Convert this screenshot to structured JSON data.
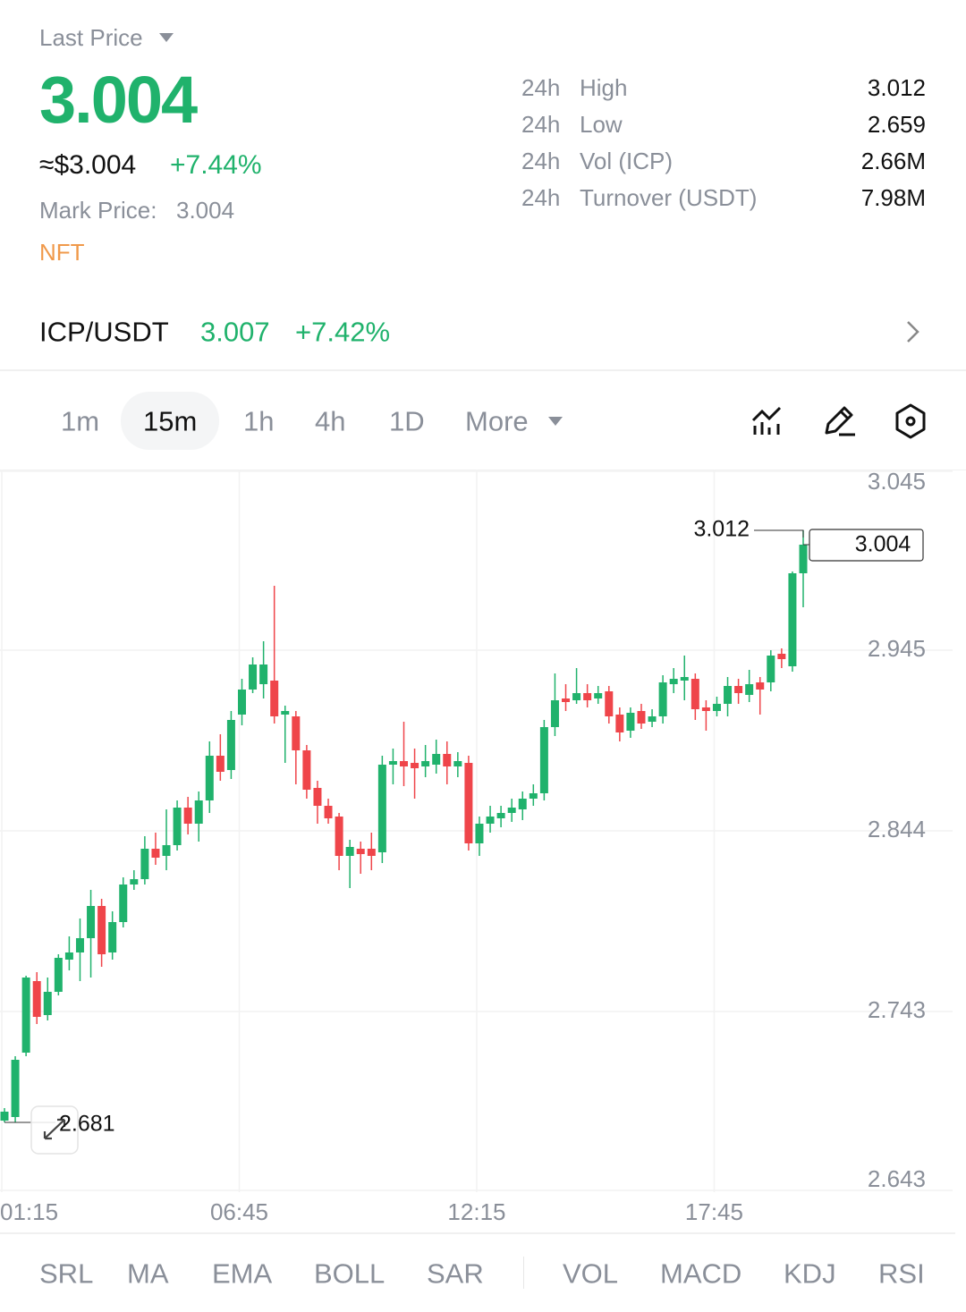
{
  "header": {
    "price_type": "Last Price",
    "last_price": "3.004",
    "usd_price": "≈$3.004",
    "change": "+7.44%",
    "mark_price_label": "Mark Price:",
    "mark_price": "3.004",
    "tag": "NFT"
  },
  "stats": [
    {
      "period": "24h",
      "label": "High",
      "value": "3.012"
    },
    {
      "period": "24h",
      "label": "Low",
      "value": "2.659"
    },
    {
      "period": "24h",
      "label": "Vol (ICP)",
      "value": "2.66M"
    },
    {
      "period": "24h",
      "label": "Turnover (USDT)",
      "value": "7.98M"
    }
  ],
  "pair": {
    "name": "ICP/USDT",
    "price": "3.007",
    "change": "+7.42%"
  },
  "intervals": [
    "1m",
    "15m",
    "1h",
    "4h",
    "1D",
    "More"
  ],
  "selected_interval": "15m",
  "indicators": [
    "SRL",
    "MA",
    "EMA",
    "BOLL",
    "SAR",
    "VOL",
    "MACD",
    "KDJ",
    "RSI"
  ],
  "chart_data": {
    "type": "candlestick",
    "categories": [
      "01:15",
      null,
      null,
      null,
      null,
      null,
      null,
      null,
      null,
      null,
      null,
      null,
      null,
      null,
      null,
      null,
      null,
      null,
      null,
      null,
      null,
      null,
      "06:45",
      null,
      null,
      null,
      null,
      null,
      null,
      null,
      null,
      null,
      null,
      null,
      null,
      null,
      null,
      null,
      null,
      null,
      null,
      null,
      null,
      null,
      "12:15",
      null,
      null,
      null,
      null,
      null,
      null,
      null,
      null,
      null,
      null,
      null,
      null,
      null,
      null,
      null,
      null,
      null,
      null,
      null,
      null,
      null,
      "17:45",
      null,
      null,
      null,
      null,
      null,
      null,
      null,
      null
    ],
    "open": [
      2.682,
      2.684,
      2.72,
      2.76,
      2.741,
      2.754,
      2.772,
      2.776,
      2.784,
      2.802,
      2.776,
      2.793,
      2.814,
      2.817,
      2.834,
      2.83,
      2.836,
      2.857,
      2.848,
      2.861,
      2.886,
      2.878,
      2.909,
      2.923,
      2.926,
      2.928,
      2.909,
      2.908,
      2.889,
      2.868,
      2.858,
      2.852,
      2.83,
      2.834,
      2.834,
      2.832,
      2.881,
      2.883,
      2.882,
      2.88,
      2.881,
      2.887,
      2.88,
      2.882,
      2.837,
      2.848,
      2.851,
      2.854,
      2.856,
      2.862,
      2.865,
      2.902,
      2.918,
      2.917,
      2.921,
      2.918,
      2.922,
      2.909,
      2.9,
      2.911,
      2.905,
      2.908,
      2.926,
      2.928,
      2.929,
      2.913,
      2.911,
      2.915,
      2.925,
      2.92,
      2.927,
      2.927,
      2.943,
      2.936,
      2.988
    ],
    "high": [
      2.689,
      2.718,
      2.763,
      2.765,
      2.762,
      2.775,
      2.785,
      2.795,
      2.811,
      2.806,
      2.799,
      2.818,
      2.822,
      2.841,
      2.843,
      2.856,
      2.861,
      2.863,
      2.866,
      2.894,
      2.898,
      2.911,
      2.929,
      2.941,
      2.95,
      2.981,
      2.914,
      2.911,
      2.892,
      2.872,
      2.862,
      2.854,
      2.839,
      2.838,
      2.843,
      2.886,
      2.89,
      2.905,
      2.89,
      2.892,
      2.895,
      2.894,
      2.888,
      2.886,
      2.852,
      2.858,
      2.858,
      2.862,
      2.866,
      2.87,
      2.906,
      2.932,
      2.926,
      2.935,
      2.926,
      2.925,
      2.925,
      2.913,
      2.913,
      2.915,
      2.912,
      2.931,
      2.935,
      2.942,
      2.932,
      2.917,
      2.919,
      2.93,
      2.929,
      2.934,
      2.93,
      2.945,
      2.946,
      2.989,
      3.012
    ],
    "low": [
      2.681,
      2.681,
      2.718,
      2.736,
      2.738,
      2.752,
      2.766,
      2.76,
      2.762,
      2.768,
      2.772,
      2.79,
      2.811,
      2.814,
      2.825,
      2.822,
      2.833,
      2.842,
      2.838,
      2.854,
      2.872,
      2.873,
      2.903,
      2.921,
      2.918,
      2.904,
      2.882,
      2.87,
      2.862,
      2.848,
      2.848,
      2.822,
      2.812,
      2.82,
      2.822,
      2.826,
      2.87,
      2.869,
      2.862,
      2.874,
      2.876,
      2.87,
      2.874,
      2.833,
      2.83,
      2.843,
      2.846,
      2.849,
      2.85,
      2.858,
      2.861,
      2.897,
      2.911,
      2.915,
      2.913,
      2.915,
      2.904,
      2.894,
      2.896,
      2.901,
      2.902,
      2.904,
      2.921,
      2.917,
      2.906,
      2.9,
      2.908,
      2.908,
      2.915,
      2.916,
      2.909,
      2.922,
      2.935,
      2.933,
      2.969
    ],
    "close": [
      2.687,
      2.716,
      2.762,
      2.74,
      2.754,
      2.773,
      2.776,
      2.784,
      2.802,
      2.775,
      2.793,
      2.814,
      2.817,
      2.834,
      2.829,
      2.836,
      2.857,
      2.848,
      2.861,
      2.886,
      2.877,
      2.906,
      2.923,
      2.937,
      2.937,
      2.908,
      2.911,
      2.889,
      2.867,
      2.858,
      2.851,
      2.83,
      2.835,
      2.831,
      2.83,
      2.881,
      2.883,
      2.88,
      2.879,
      2.883,
      2.887,
      2.88,
      2.883,
      2.837,
      2.848,
      2.852,
      2.854,
      2.857,
      2.862,
      2.865,
      2.902,
      2.917,
      2.916,
      2.921,
      2.917,
      2.921,
      2.908,
      2.899,
      2.91,
      2.904,
      2.908,
      2.927,
      2.929,
      2.93,
      2.912,
      2.911,
      2.915,
      2.925,
      2.921,
      2.926,
      2.923,
      2.942,
      2.94,
      2.988,
      3.004
    ],
    "up_color": "#20b26c",
    "down_color": "#ef454a",
    "ylim": [
      2.642,
      3.046
    ],
    "yticks": [
      3.045,
      2.945,
      2.844,
      2.743,
      2.643
    ],
    "grid": true,
    "markers": {
      "high": 3.012,
      "low": 2.681,
      "last": 3.004
    }
  }
}
